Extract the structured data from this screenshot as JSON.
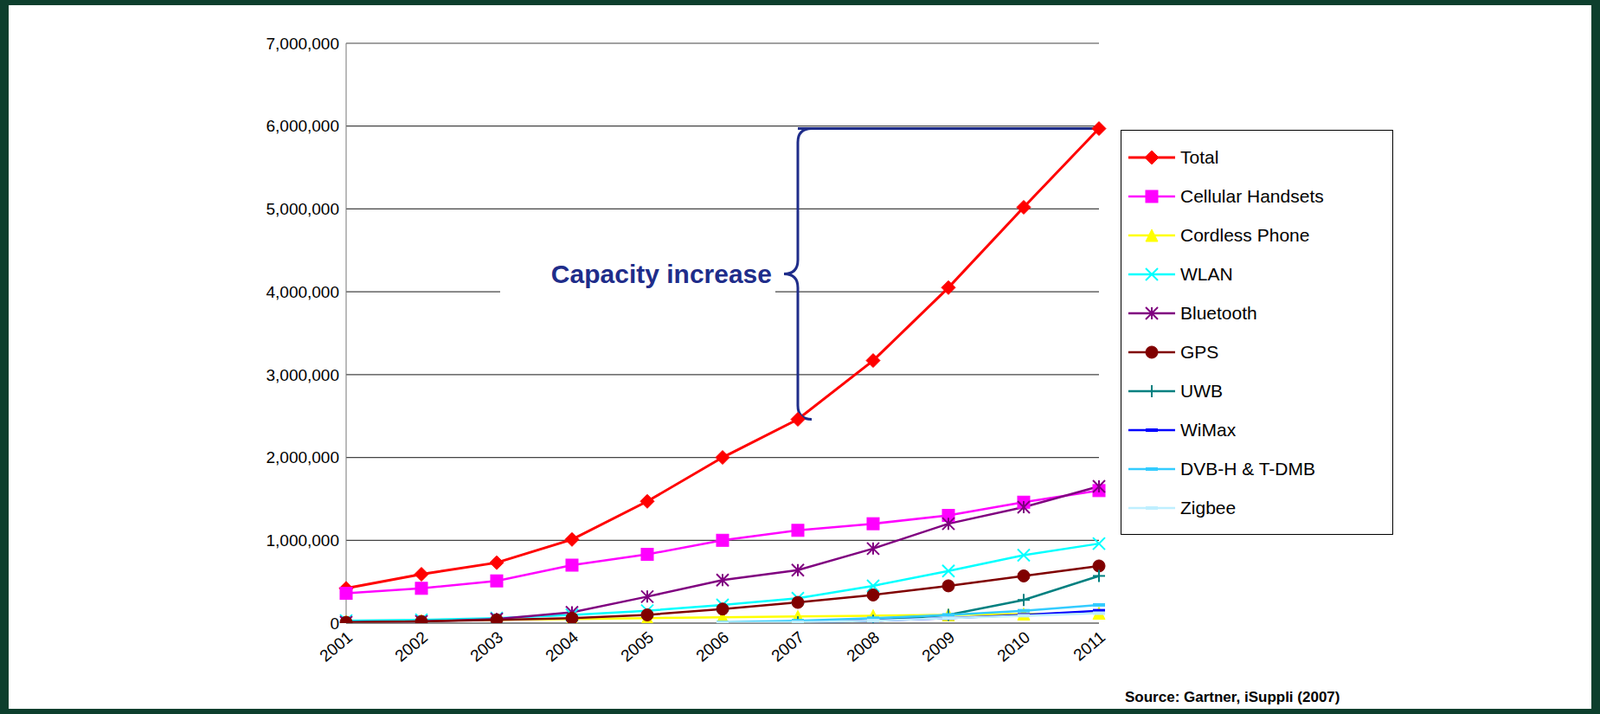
{
  "chart_data": {
    "type": "line",
    "annotation": "Capacity increase",
    "source": "Source: Gartner, iSuppli (2007)",
    "categories": [
      "2001",
      "2002",
      "2003",
      "2004",
      "2005",
      "2006",
      "2007",
      "2008",
      "2009",
      "2010",
      "2011"
    ],
    "ylim": [
      0,
      7000000
    ],
    "yticks": [
      0,
      {
        "value": 1000000,
        "label": "1,000,000"
      },
      {
        "value": 2000000,
        "label": "2,000,000"
      },
      {
        "value": 3000000,
        "label": "3,000,000"
      },
      {
        "value": 4000000,
        "label": "4,000,000"
      },
      {
        "value": 5000000,
        "label": "5,000,000"
      },
      {
        "value": 6000000,
        "label": "6,000,000"
      },
      {
        "value": 7000000,
        "label": "7,000,000"
      }
    ],
    "grid": true,
    "legend": "right",
    "series": [
      {
        "name": "Total",
        "color": "#ff0000",
        "marker": "diamond",
        "values": [
          420000,
          590000,
          730000,
          1010000,
          1470000,
          2000000,
          2460000,
          3170000,
          4050000,
          5020000,
          5970000
        ]
      },
      {
        "name": "Cellular Handsets",
        "color": "#ff00ff",
        "marker": "square",
        "values": [
          360000,
          420000,
          510000,
          700000,
          830000,
          1000000,
          1120000,
          1200000,
          1300000,
          1460000,
          1600000
        ]
      },
      {
        "name": "Cordless Phone",
        "color": "#ffff00",
        "marker": "triangle",
        "values": [
          20000,
          30000,
          40000,
          50000,
          60000,
          70000,
          80000,
          90000,
          100000,
          110000,
          120000
        ]
      },
      {
        "name": "WLAN",
        "color": "#00ffff",
        "marker": "x",
        "values": [
          30000,
          40000,
          60000,
          100000,
          150000,
          220000,
          300000,
          450000,
          630000,
          820000,
          960000
        ]
      },
      {
        "name": "Bluetooth",
        "color": "#800080",
        "marker": "star",
        "values": [
          10000,
          20000,
          50000,
          130000,
          320000,
          520000,
          640000,
          900000,
          1200000,
          1400000,
          1650000
        ]
      },
      {
        "name": "GPS",
        "color": "#800000",
        "marker": "circle",
        "values": [
          10000,
          20000,
          40000,
          60000,
          100000,
          170000,
          250000,
          340000,
          450000,
          570000,
          690000
        ]
      },
      {
        "name": "UWB",
        "color": "#008080",
        "marker": "plus",
        "values": [
          null,
          null,
          null,
          null,
          null,
          null,
          10000,
          30000,
          100000,
          280000,
          570000
        ]
      },
      {
        "name": "WiMax",
        "color": "#0000ff",
        "marker": "dash",
        "values": [
          null,
          null,
          null,
          null,
          null,
          5000,
          10000,
          30000,
          60000,
          100000,
          150000
        ]
      },
      {
        "name": "DVB-H & T-DMB",
        "color": "#33ccff",
        "marker": "dash",
        "values": [
          null,
          null,
          null,
          null,
          null,
          10000,
          30000,
          60000,
          100000,
          150000,
          220000
        ]
      },
      {
        "name": "Zigbee",
        "color": "#bfefff",
        "marker": "dash",
        "values": [
          null,
          null,
          null,
          null,
          null,
          5000,
          10000,
          30000,
          60000,
          90000,
          120000
        ]
      }
    ]
  }
}
